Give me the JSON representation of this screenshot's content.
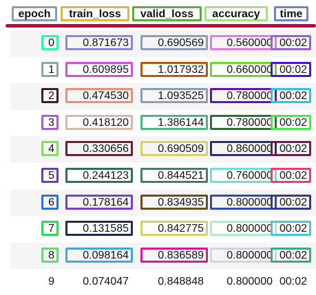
{
  "columns": [
    "epoch",
    "train_loss",
    "valid_loss",
    "accuracy",
    "time"
  ],
  "header_colors": [
    "#8a9bb8",
    "#d6b84a",
    "#5aae3c",
    "#a8e07a",
    "#6f7fd6"
  ],
  "rows": [
    {
      "epoch": "0",
      "train_loss": "0.871673",
      "valid_loss": "0.690569",
      "accuracy": "0.560000",
      "time": "00:02",
      "colors": [
        "#2ef5a8",
        "#8a86d8",
        "#8a9bb8",
        "#e07ae0",
        "#9a5ed6"
      ]
    },
    {
      "epoch": "1",
      "train_loss": "0.609895",
      "valid_loss": "1.017932",
      "accuracy": "0.660000",
      "time": "00:02",
      "colors": [
        "#8aa89c",
        "#cf4fd6",
        "#b85a0e",
        "#6ad62e",
        "#4a14d6"
      ]
    },
    {
      "epoch": "2",
      "train_loss": "0.474530",
      "valid_loss": "1.093525",
      "accuracy": "0.780000",
      "time": "00:02",
      "colors": [
        "#3c1e1e",
        "#f08a7a",
        "#8a9bb8",
        "#5a14b8",
        "#2ec4e0"
      ]
    },
    {
      "epoch": "3",
      "train_loss": "0.418120",
      "valid_loss": "1.386144",
      "accuracy": "0.780000",
      "time": "00:02",
      "colors": [
        "#a85ed6",
        "#d6b8a8",
        "#4ab87a",
        "#2e6e3c",
        "#3cf03c"
      ]
    },
    {
      "epoch": "4",
      "train_loss": "0.330656",
      "valid_loss": "0.690509",
      "accuracy": "0.860000",
      "time": "00:02",
      "colors": [
        "#8ad66a",
        "#6e1e3c",
        "#d6d06a",
        "#2e2e6e",
        "#6e1e4a"
      ]
    },
    {
      "epoch": "5",
      "train_loss": "0.244123",
      "valid_loss": "0.844521",
      "accuracy": "0.760000",
      "time": "00:02",
      "colors": [
        "#6a3cb8",
        "#2e6e5a",
        "#4a7a6a",
        "#6ae0d6",
        "#f03c6a"
      ]
    },
    {
      "epoch": "6",
      "train_loss": "0.178164",
      "valid_loss": "0.834935",
      "accuracy": "0.800000",
      "time": "00:02",
      "colors": [
        "#2e6ed6",
        "#7a3cd6",
        "#6e4a1e",
        "#2e4ab8",
        "#2e3c8a"
      ]
    },
    {
      "epoch": "7",
      "train_loss": "0.131585",
      "valid_loss": "0.842775",
      "accuracy": "0.800000",
      "time": "00:02",
      "colors": [
        "#2ed65a",
        "#1e2e4a",
        "#d6d06a",
        "#a8f0c4",
        "#4ac4d6"
      ]
    },
    {
      "epoch": "8",
      "train_loss": "0.098164",
      "valid_loss": "0.836589",
      "accuracy": "0.800000",
      "time": "00:02",
      "colors": [
        "#6ad67a",
        "#3ca8e0",
        "#d614a8",
        "#d6d0e0",
        "#3ca88a"
      ]
    },
    {
      "epoch": "9",
      "train_loss": "0.074047",
      "valid_loss": "0.848848",
      "accuracy": "0.800000",
      "time": "00:02",
      "colors": [
        "",
        "",
        "",
        "",
        ""
      ]
    }
  ]
}
